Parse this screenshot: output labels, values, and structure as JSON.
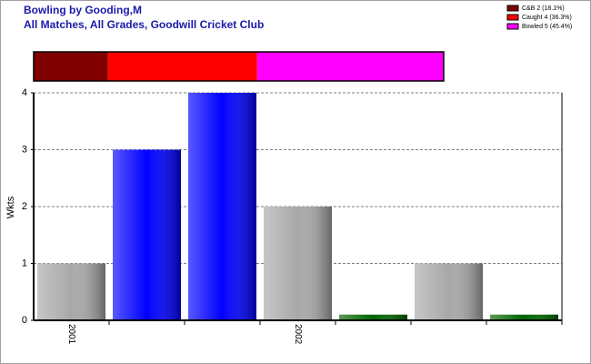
{
  "chart_data": [
    {
      "type": "stacked_strip",
      "title": "Bowling by Gooding,M",
      "subtitle": "All Matches, All Grades, Goodwill Cricket Club",
      "series": [
        {
          "name": "C&B 2 (18.1%)",
          "color": "#800000",
          "values": [
            18.1
          ]
        },
        {
          "name": "Caught 4 (36.3%)",
          "color": "#ff0000",
          "values": [
            36.3
          ]
        },
        {
          "name": "Bowled 5 (45.4%)",
          "color": "#ff00ff",
          "values": [
            45.4
          ]
        }
      ]
    },
    {
      "type": "bar",
      "y_label": "Wkts",
      "categories": [
        "2001",
        null,
        null,
        "2002",
        null,
        null,
        null
      ],
      "values": [
        1,
        3,
        4,
        2,
        0.1,
        1,
        0.1
      ],
      "colors": [
        "#a8a8a8",
        "#0000ff",
        "#0000ff",
        "#a8a8a8",
        "#006400",
        "#a8a8a8",
        "#006400"
      ],
      "ylim": [
        0,
        4
      ],
      "yticks": [
        0,
        1,
        2,
        3,
        4
      ],
      "grid": true
    }
  ]
}
